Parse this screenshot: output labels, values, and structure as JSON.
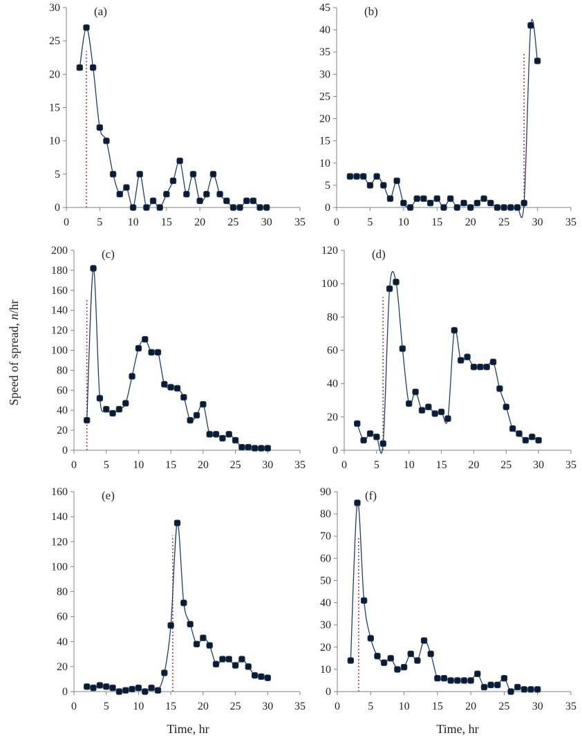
{
  "figure": {
    "ylabel": "Speed of spread, n/hr",
    "ylabel_main": "Speed of spread, ",
    "ylabel_italic": "n",
    "ylabel_unit": "/hr",
    "xlabel": "Time, hr"
  },
  "colors": {
    "axis": "#808080",
    "line": "#1f3b6e",
    "marker_fill": "#0d1b2a",
    "marker_edge": "#1f3b6e",
    "threshold": "#c0392b"
  },
  "chart_data": [
    {
      "type": "line",
      "panel_label": "(a)",
      "xlabel": "",
      "ylabel": "",
      "xlim": [
        0,
        35
      ],
      "ylim": [
        0,
        30
      ],
      "x_ticks": [
        0,
        5,
        10,
        15,
        20,
        25,
        30,
        35
      ],
      "y_ticks": [
        0,
        5,
        10,
        15,
        20,
        25,
        30
      ],
      "threshold_line": {
        "x": 3,
        "y": 23.5,
        "style": "dotted"
      },
      "series": [
        {
          "x": [
            2,
            3,
            4,
            5,
            6,
            7,
            8,
            9,
            10,
            11,
            12,
            13,
            14,
            15,
            16,
            17,
            18,
            19,
            20,
            21,
            22,
            23,
            24,
            25,
            26,
            27,
            28,
            29,
            30
          ],
          "y": [
            21,
            27,
            21,
            12,
            10,
            5,
            2,
            3,
            0,
            5,
            0,
            1,
            0,
            2,
            4,
            7,
            2,
            5,
            1,
            2,
            5,
            2,
            1,
            0,
            0,
            1,
            1,
            0,
            0
          ]
        }
      ]
    },
    {
      "type": "line",
      "panel_label": "(b)",
      "xlabel": "",
      "ylabel": "",
      "xlim": [
        0,
        35
      ],
      "ylim": [
        0,
        45
      ],
      "x_ticks": [
        0,
        5,
        10,
        15,
        20,
        25,
        30,
        35
      ],
      "y_ticks": [
        0,
        5,
        10,
        15,
        20,
        25,
        30,
        35,
        40,
        45
      ],
      "threshold_line": {
        "x": 28,
        "y": 35,
        "style": "dotted"
      },
      "series": [
        {
          "x": [
            2,
            3,
            4,
            5,
            6,
            7,
            8,
            9,
            10,
            11,
            12,
            13,
            14,
            15,
            16,
            17,
            18,
            19,
            20,
            21,
            22,
            23,
            24,
            25,
            26,
            27,
            28,
            29,
            30
          ],
          "y": [
            7,
            7,
            7,
            5,
            7,
            5,
            2,
            6,
            1,
            0,
            2,
            2,
            1,
            2,
            0,
            2,
            0,
            1,
            0,
            1,
            2,
            1,
            0,
            0,
            0,
            0,
            1,
            41,
            33
          ]
        }
      ]
    },
    {
      "type": "line",
      "panel_label": "(c)",
      "xlabel": "",
      "ylabel": "",
      "xlim": [
        0,
        35
      ],
      "ylim": [
        0,
        200
      ],
      "x_ticks": [
        0,
        5,
        10,
        15,
        20,
        25,
        30,
        35
      ],
      "y_ticks": [
        0,
        20,
        40,
        60,
        80,
        100,
        120,
        140,
        160,
        180,
        200
      ],
      "threshold_line": {
        "x": 2,
        "y": 152,
        "style": "dotted"
      },
      "series": [
        {
          "x": [
            2,
            3,
            4,
            5,
            6,
            7,
            8,
            9,
            10,
            11,
            12,
            13,
            14,
            15,
            16,
            17,
            18,
            19,
            20,
            21,
            22,
            23,
            24,
            25,
            26,
            27,
            28,
            29,
            30
          ],
          "y": [
            30,
            182,
            52,
            41,
            37,
            41,
            47,
            74,
            102,
            111,
            98,
            98,
            66,
            63,
            62,
            53,
            30,
            35,
            46,
            16,
            16,
            12,
            16,
            10,
            3,
            3,
            2,
            2,
            2
          ]
        }
      ]
    },
    {
      "type": "line",
      "panel_label": "(d)",
      "xlabel": "",
      "ylabel": "",
      "xlim": [
        0,
        35
      ],
      "ylim": [
        0,
        120
      ],
      "x_ticks": [
        0,
        5,
        10,
        15,
        20,
        25,
        30,
        35
      ],
      "y_ticks": [
        0,
        20,
        40,
        60,
        80,
        100,
        120
      ],
      "threshold_line": {
        "x": 6,
        "y": 92,
        "style": "dotted"
      },
      "series": [
        {
          "x": [
            2,
            3,
            4,
            5,
            6,
            7,
            8,
            9,
            10,
            11,
            12,
            13,
            14,
            15,
            16,
            17,
            18,
            19,
            20,
            21,
            22,
            23,
            24,
            25,
            26,
            27,
            28,
            29,
            30
          ],
          "y": [
            16,
            6,
            10,
            8,
            4,
            97,
            101,
            61,
            28,
            35,
            24,
            26,
            22,
            23,
            19,
            72,
            54,
            56,
            50,
            50,
            50,
            53,
            37,
            26,
            13,
            10,
            6,
            8,
            6
          ]
        }
      ]
    },
    {
      "type": "line",
      "panel_label": "(e)",
      "xlabel": "Time, hr",
      "ylabel": "",
      "xlim": [
        0,
        35
      ],
      "ylim": [
        0,
        160
      ],
      "x_ticks": [
        0,
        5,
        10,
        15,
        20,
        25,
        30,
        35
      ],
      "y_ticks": [
        0,
        20,
        40,
        60,
        80,
        100,
        120,
        140,
        160
      ],
      "threshold_line": {
        "x": 15.3,
        "y": 125,
        "style": "dotted"
      },
      "series": [
        {
          "x": [
            2,
            3,
            4,
            5,
            6,
            7,
            8,
            9,
            10,
            11,
            12,
            13,
            14,
            15,
            16,
            17,
            18,
            19,
            20,
            21,
            22,
            23,
            24,
            25,
            26,
            27,
            28,
            29,
            30
          ],
          "y": [
            4,
            3,
            5,
            4,
            3,
            0,
            1,
            2,
            3,
            0,
            3,
            1,
            15,
            53,
            135,
            71,
            54,
            38,
            43,
            37,
            22,
            26,
            26,
            21,
            26,
            20,
            13,
            12,
            11
          ]
        }
      ]
    },
    {
      "type": "line",
      "panel_label": "(f)",
      "xlabel": "Time, hr",
      "ylabel": "",
      "xlim": [
        0,
        35
      ],
      "ylim": [
        0,
        90
      ],
      "x_ticks": [
        0,
        5,
        10,
        15,
        20,
        25,
        30,
        35
      ],
      "y_ticks": [
        0,
        10,
        20,
        30,
        40,
        50,
        60,
        70,
        80,
        90
      ],
      "threshold_line": {
        "x": 3.2,
        "y": 70,
        "style": "dotted"
      },
      "series": [
        {
          "x": [
            2,
            3,
            4,
            5,
            6,
            7,
            8,
            9,
            10,
            11,
            12,
            13,
            14,
            15,
            16,
            17,
            18,
            19,
            20,
            21,
            22,
            23,
            24,
            25,
            26,
            27,
            28,
            29,
            30
          ],
          "y": [
            14,
            85,
            41,
            24,
            16,
            13,
            15,
            10,
            11,
            17,
            14,
            23,
            17,
            6,
            6,
            5,
            5,
            5,
            5,
            8,
            2,
            3,
            3,
            6,
            0,
            2,
            1,
            1,
            1
          ]
        }
      ]
    }
  ]
}
